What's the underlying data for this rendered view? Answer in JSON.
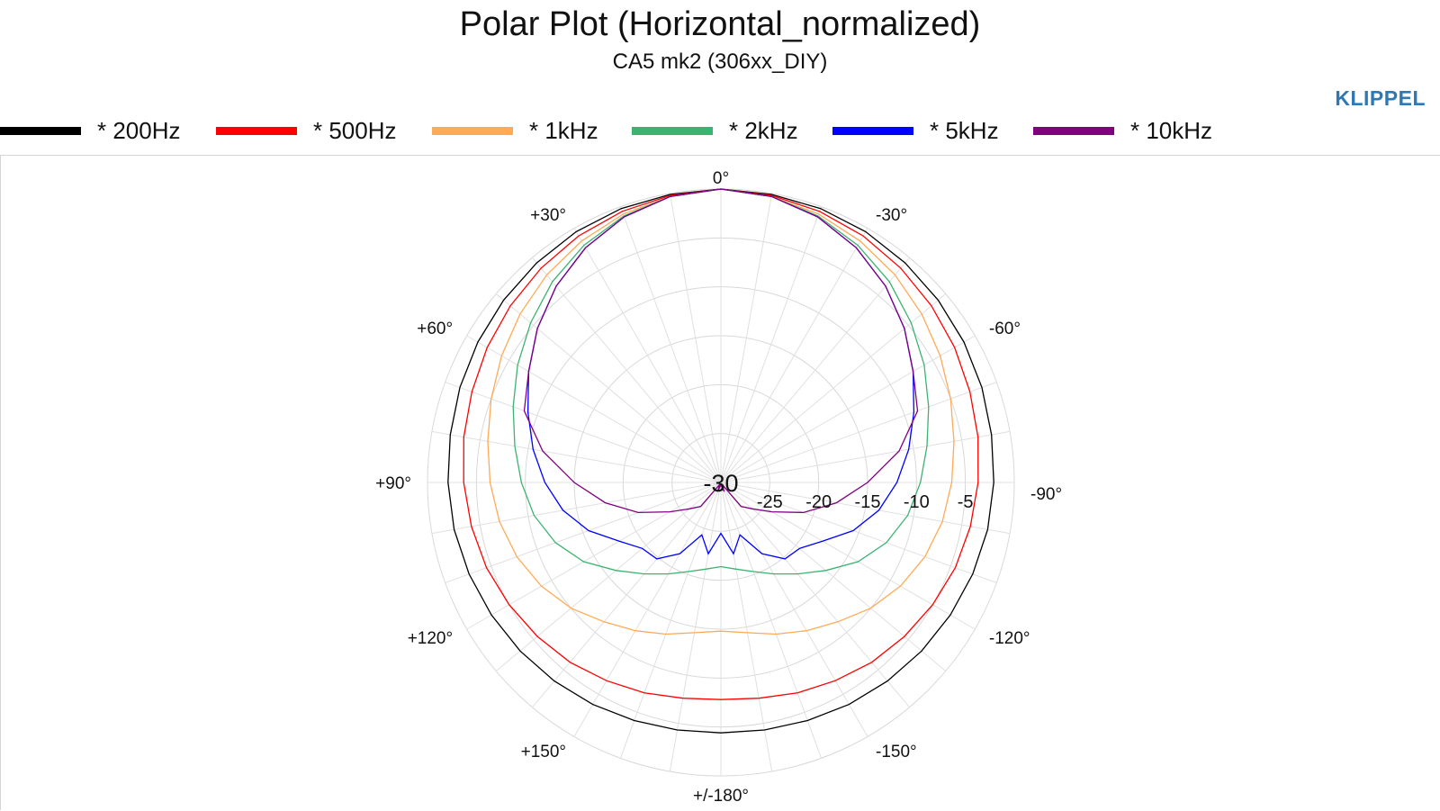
{
  "brand": "KLIPPEL",
  "chart_data": {
    "type": "polar",
    "title": "Polar Plot (Horizontal_normalized)",
    "subtitle": "CA5 mk2 (306xx_DIY)",
    "radial_axis": {
      "range": [
        -30,
        0
      ],
      "ticks": [
        -30,
        -25,
        -20,
        -15,
        -10,
        -5
      ],
      "tick_labels": [
        "-30",
        "-25",
        "-20",
        "-15",
        "-10",
        "-5"
      ]
    },
    "angular_axis": {
      "direction": "positive angles counter-clockwise (left side), 0° at top",
      "labels": [
        {
          "angle": 0,
          "label": "0°"
        },
        {
          "angle": -30,
          "label": "-30°"
        },
        {
          "angle": -60,
          "label": "-60°"
        },
        {
          "angle": -90,
          "label": "-90°"
        },
        {
          "angle": -120,
          "label": "-120°"
        },
        {
          "angle": -150,
          "label": "-150°"
        },
        {
          "angle": 180,
          "label": "+/-180°"
        },
        {
          "angle": 150,
          "label": "+150°"
        },
        {
          "angle": 120,
          "label": "+120°"
        },
        {
          "angle": 90,
          "label": "+90°"
        },
        {
          "angle": 60,
          "label": "+60°"
        },
        {
          "angle": 30,
          "label": "+30°"
        }
      ]
    },
    "grid": true,
    "legend_position": "top",
    "angles": [
      0,
      10,
      20,
      30,
      40,
      50,
      60,
      70,
      80,
      90,
      100,
      110,
      120,
      130,
      140,
      150,
      160,
      170,
      180
    ],
    "series": [
      {
        "name": "* 200Hz",
        "color": "#000000",
        "values": [
          0,
          -0.1,
          -0.2,
          -0.4,
          -0.7,
          -1.0,
          -1.3,
          -1.6,
          -1.9,
          -2.1,
          -2.3,
          -2.6,
          -2.9,
          -3.2,
          -3.5,
          -3.8,
          -4.1,
          -4.3,
          -4.4
        ]
      },
      {
        "name": "* 500Hz",
        "color": "#ff0000",
        "values": [
          0,
          -0.2,
          -0.5,
          -0.9,
          -1.4,
          -1.9,
          -2.4,
          -2.9,
          -3.3,
          -3.7,
          -4.1,
          -4.5,
          -5.0,
          -5.5,
          -6.0,
          -6.6,
          -7.1,
          -7.6,
          -7.8
        ]
      },
      {
        "name": "* 1kHz",
        "color": "#ffaa55",
        "values": [
          0,
          -0.3,
          -0.8,
          -1.5,
          -2.3,
          -3.2,
          -4.1,
          -5.0,
          -5.8,
          -6.4,
          -7.0,
          -7.8,
          -8.8,
          -10.0,
          -11.4,
          -12.5,
          -13.5,
          -14.4,
          -14.8
        ]
      },
      {
        "name": "* 2kHz",
        "color": "#3cb371",
        "values": [
          0,
          -0.3,
          -1.0,
          -2.0,
          -3.2,
          -4.6,
          -6.0,
          -7.4,
          -8.6,
          -9.6,
          -10.6,
          -12.0,
          -13.8,
          -16.0,
          -17.8,
          -19.2,
          -20.3,
          -21.0,
          -21.4
        ]
      },
      {
        "name": "* 5kHz",
        "color": "#0000ff",
        "values": [
          0,
          -0.3,
          -1.1,
          -2.3,
          -3.8,
          -5.5,
          -7.3,
          -9.0,
          -10.5,
          -12.0,
          -13.6,
          -15.6,
          -18.0,
          -19.5,
          -19.8,
          -21.6,
          -24.3,
          -22.6,
          -24.8
        ]
      },
      {
        "name": "* 10kHz",
        "color": "#800080",
        "values": [
          0,
          -0.3,
          -1.1,
          -2.3,
          -3.8,
          -5.5,
          -7.3,
          -8.6,
          -11.5,
          -15.0,
          -18.0,
          -21.0,
          -24.0,
          -25.8,
          -26.8,
          -29.8,
          -29.0,
          -29.6,
          -29.8
        ]
      }
    ]
  }
}
